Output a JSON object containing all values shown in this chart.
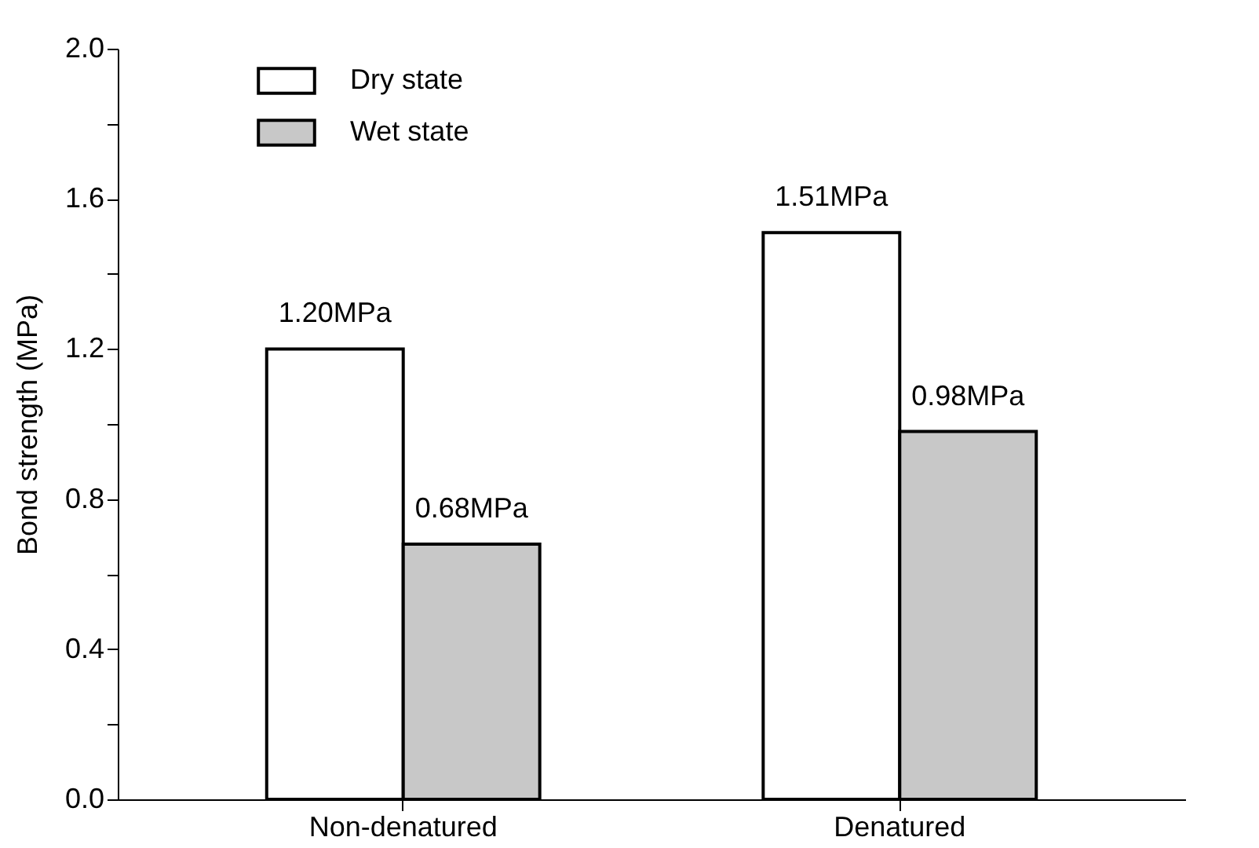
{
  "chart_data": {
    "type": "bar",
    "ylabel": "Bond strength (MPa)",
    "categories": [
      "Non-denatured",
      "Denatured"
    ],
    "series": [
      {
        "name": "Dry state",
        "color": "#ffffff",
        "values": [
          1.2,
          1.51
        ],
        "value_labels": [
          "1.20MPa",
          "1.51MPa"
        ]
      },
      {
        "name": "Wet state",
        "color": "#c8c8c8",
        "values": [
          0.68,
          0.98
        ],
        "value_labels": [
          "0.68MPa",
          "0.98MPa"
        ]
      }
    ],
    "ylim": [
      0,
      2.0
    ],
    "yticks": [
      {
        "value": 0,
        "label": "0.0"
      },
      {
        "value": 0.2,
        "label": null
      },
      {
        "value": 0.4,
        "label": "0.4"
      },
      {
        "value": 0.6,
        "label": null
      },
      {
        "value": 0.8,
        "label": "0.8"
      },
      {
        "value": 1.0,
        "label": null
      },
      {
        "value": 1.2,
        "label": "1.2"
      },
      {
        "value": 1.4,
        "label": null
      },
      {
        "value": 1.6,
        "label": "1.6"
      },
      {
        "value": 1.8,
        "label": null
      },
      {
        "value": 2.0,
        "label": "2.0"
      }
    ],
    "grid": false,
    "legend": "top left"
  }
}
